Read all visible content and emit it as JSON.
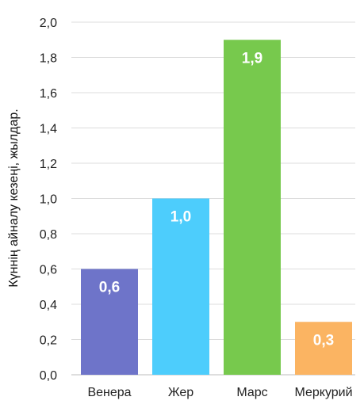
{
  "chart_data": {
    "type": "bar",
    "categories": [
      "Венера",
      "Жер",
      "Марс",
      "Меркурий"
    ],
    "values": [
      0.6,
      1.0,
      1.9,
      0.3
    ],
    "value_labels": [
      "0,6",
      "1,0",
      "1,9",
      "0,3"
    ],
    "colors": [
      "#6e74c9",
      "#4dcdfc",
      "#77c94d",
      "#fbb462"
    ],
    "title": "",
    "xlabel": "",
    "ylabel": "Күннің айналу кезеңі, жылдар.",
    "ylim": [
      0,
      2
    ],
    "yticks": [
      {
        "value": 0.0,
        "label": "0,0"
      },
      {
        "value": 0.2,
        "label": "0,2"
      },
      {
        "value": 0.4,
        "label": "0,4"
      },
      {
        "value": 0.6,
        "label": "0,6"
      },
      {
        "value": 0.8,
        "label": "0,8"
      },
      {
        "value": 1.0,
        "label": "1,0"
      },
      {
        "value": 1.2,
        "label": "1,2"
      },
      {
        "value": 1.4,
        "label": "1,4"
      },
      {
        "value": 1.6,
        "label": "1,6"
      },
      {
        "value": 1.8,
        "label": "1,8"
      },
      {
        "value": 2.0,
        "label": "2,0"
      }
    ],
    "grid": true,
    "gridline_color": "#dcdcdc"
  }
}
